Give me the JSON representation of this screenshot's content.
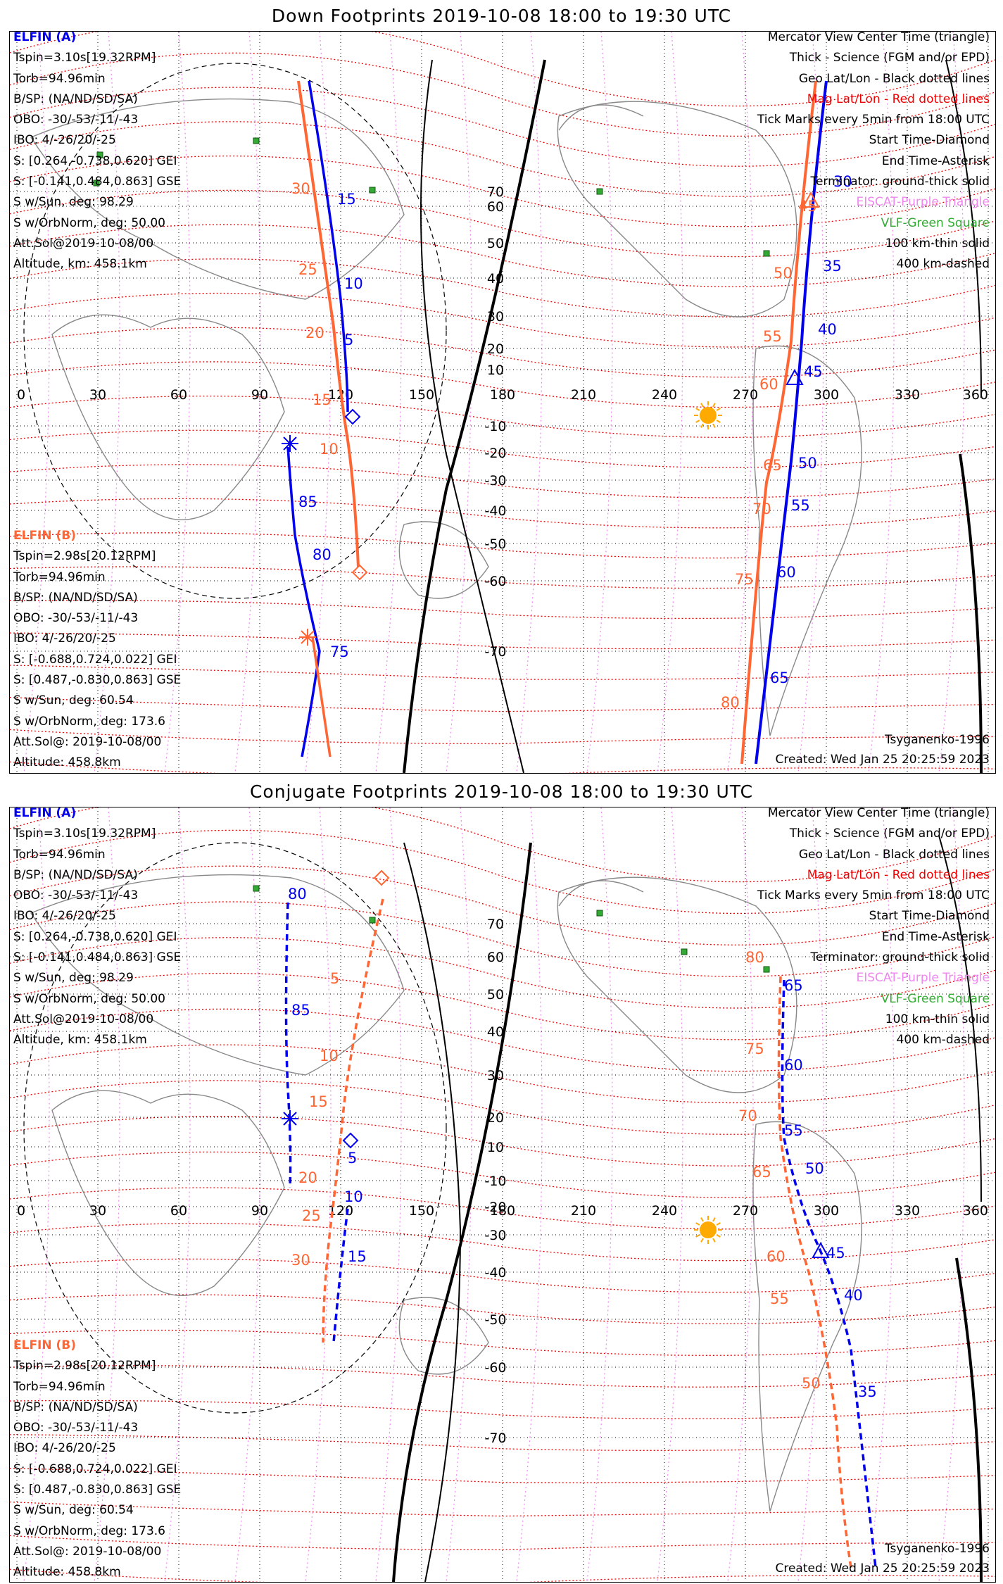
{
  "colors": {
    "elfin_a": "#0000ee",
    "elfin_b": "#ff6633",
    "mag_grid": "#ee0000",
    "eiscat": "#ee88ee",
    "vlf": "#33aa33",
    "sun": "#ffaa00",
    "coast": "#888888"
  },
  "panels": [
    {
      "title": "Down Footprints 2019-10-08 18:00 to 19:30 UTC",
      "footprint_mode": "down",
      "elfin_a": {
        "header": "ELFIN (A)",
        "lines": [
          "Tspin=3.10s[19.32RPM]",
          "Torb=94.96min",
          "B/SP: (NA/ND/SD/SA)",
          "OBO: -30/-53/-11/-43",
          "IBO: 4/-26/20/-25",
          "S: [0.264,-0.738,0.620] GEI",
          "S: [-0.141,0.484,0.863] GSE",
          "S w/Sun, deg: 98.29",
          "S w/OrbNorm, deg: 50.00",
          "Att.Sol@2019-10-08/00",
          "Altitude, km: 458.1km"
        ]
      },
      "elfin_b": {
        "header": "ELFIN (B)",
        "lines": [
          "Tspin=2.98s[20.12RPM]",
          "Torb=94.96min",
          "B/SP: (NA/ND/SD/SA)",
          "OBO: -30/-53/-11/-43",
          "IBO: 4/-26/20/-25",
          "S: [-0.688,0.724,0.022] GEI",
          "S: [0.487,-0.830,0.863] GSE",
          "S w/Sun, deg: 60.54",
          "S w/OrbNorm, deg: 173.6",
          "Att.Sol@: 2019-10-08/00",
          "Altitude: 458.8km"
        ]
      },
      "legend": [
        "Mercator View Center Time (triangle)",
        "Thick - Science (FGM and/or EPD)",
        "Geo Lat/Lon - Black dotted lines",
        "Mag Lat/Lon - Red dotted lines",
        "Tick Marks every 5min from 18:00 UTC",
        "Start Time-Diamond",
        "End Time-Asterisk",
        "Terminator: ground-thick solid",
        "EISCAT-Purple Triangle",
        "VLF-Green Square",
        "100 km-thin solid",
        "400 km-dashed"
      ],
      "model": "Tsyganenko-1996",
      "created": "Created: Wed Jan 25 20:25:59 2023",
      "lon_labels": [
        "0",
        "30",
        "60",
        "90",
        "120",
        "150",
        "180",
        "210",
        "240",
        "270",
        "300",
        "330",
        "360"
      ],
      "lat_labels": [
        "70",
        "60",
        "50",
        "40",
        "30",
        "20",
        "10",
        "-10",
        "-20",
        "-30",
        "-40",
        "-50",
        "-60",
        "-70"
      ],
      "tick_labels": [
        {
          "text": "30",
          "c": "elfin_b"
        },
        {
          "text": "25",
          "c": "elfin_b"
        },
        {
          "text": "20",
          "c": "elfin_b"
        },
        {
          "text": "15",
          "c": "elfin_b"
        },
        {
          "text": "10",
          "c": "elfin_b"
        },
        {
          "text": "15",
          "c": "elfin_a"
        },
        {
          "text": "10",
          "c": "elfin_a"
        },
        {
          "text": "5",
          "c": "elfin_a"
        },
        {
          "text": "85",
          "c": "elfin_a"
        },
        {
          "text": "80",
          "c": "elfin_a"
        },
        {
          "text": "75",
          "c": "elfin_a"
        },
        {
          "text": "30",
          "c": "elfin_a"
        },
        {
          "text": "35",
          "c": "elfin_a"
        },
        {
          "text": "40",
          "c": "elfin_a"
        },
        {
          "text": "45",
          "c": "elfin_a"
        },
        {
          "text": "50",
          "c": "elfin_a"
        },
        {
          "text": "55",
          "c": "elfin_a"
        },
        {
          "text": "60",
          "c": "elfin_a"
        },
        {
          "text": "65",
          "c": "elfin_a"
        },
        {
          "text": "45",
          "c": "elfin_b"
        },
        {
          "text": "50",
          "c": "elfin_b"
        },
        {
          "text": "55",
          "c": "elfin_b"
        },
        {
          "text": "60",
          "c": "elfin_b"
        },
        {
          "text": "65",
          "c": "elfin_b"
        },
        {
          "text": "70",
          "c": "elfin_b"
        },
        {
          "text": "75",
          "c": "elfin_b"
        },
        {
          "text": "80",
          "c": "elfin_b"
        }
      ]
    },
    {
      "title": "Conjugate Footprints 2019-10-08 18:00 to 19:30 UTC",
      "footprint_mode": "conjugate",
      "elfin_a": {
        "header": "ELFIN (A)",
        "lines": [
          "Tspin=3.10s[19.32RPM]",
          "Torb=94.96min",
          "B/SP: (NA/ND/SD/SA)",
          "OBO: -30/-53/-11/-43",
          "IBO: 4/-26/20/-25",
          "S: [0.264,-0.738,0.620] GEI",
          "S: [-0.141,0.484,0.863] GSE",
          "S w/Sun, deg: 98.29",
          "S w/OrbNorm, deg: 50.00",
          "Att.Sol@2019-10-08/00",
          "Altitude, km: 458.1km"
        ]
      },
      "elfin_b": {
        "header": "ELFIN (B)",
        "lines": [
          "Tspin=2.98s[20.12RPM]",
          "Torb=94.96min",
          "B/SP: (NA/ND/SD/SA)",
          "OBO: -30/-53/-11/-43",
          "IBO: 4/-26/20/-25",
          "S: [-0.688,0.724,0.022] GEI",
          "S: [0.487,-0.830,0.863] GSE",
          "S w/Sun, deg: 60.54",
          "S w/OrbNorm, deg: 173.6",
          "Att.Sol@: 2019-10-08/00",
          "Altitude: 458.8km"
        ]
      },
      "legend": [
        "Mercator View Center Time (triangle)",
        "Thick - Science (FGM and/or EPD)",
        "Geo Lat/Lon - Black dotted lines",
        "Mag Lat/Lon - Red dotted lines",
        "Tick Marks every 5min from 18:00 UTC",
        "Start Time-Diamond",
        "End Time-Asterisk",
        "Terminator: ground-thick solid",
        "EISCAT-Purple Triangle",
        "VLF-Green Square",
        "100 km-thin solid",
        "400 km-dashed"
      ],
      "model": "Tsyganenko-1996",
      "created": "Created: Wed Jan 25 20:25:59 2023",
      "lon_labels": [
        "0",
        "30",
        "60",
        "90",
        "120",
        "150",
        "180",
        "210",
        "240",
        "270",
        "300",
        "330",
        "360"
      ],
      "lat_labels": [
        "70",
        "60",
        "50",
        "40",
        "30",
        "20",
        "10",
        "-10",
        "-20",
        "-30",
        "-40",
        "-50",
        "-60",
        "-70"
      ],
      "tick_labels": [
        {
          "text": "80",
          "c": "elfin_a"
        },
        {
          "text": "85",
          "c": "elfin_a"
        },
        {
          "text": "5",
          "c": "elfin_b"
        },
        {
          "text": "10",
          "c": "elfin_b"
        },
        {
          "text": "15",
          "c": "elfin_b"
        },
        {
          "text": "20",
          "c": "elfin_b"
        },
        {
          "text": "25",
          "c": "elfin_b"
        },
        {
          "text": "30",
          "c": "elfin_b"
        },
        {
          "text": "5",
          "c": "elfin_a"
        },
        {
          "text": "10",
          "c": "elfin_a"
        },
        {
          "text": "15",
          "c": "elfin_a"
        },
        {
          "text": "65",
          "c": "elfin_a"
        },
        {
          "text": "60",
          "c": "elfin_a"
        },
        {
          "text": "55",
          "c": "elfin_a"
        },
        {
          "text": "50",
          "c": "elfin_a"
        },
        {
          "text": "45",
          "c": "elfin_a"
        },
        {
          "text": "40",
          "c": "elfin_a"
        },
        {
          "text": "35",
          "c": "elfin_a"
        },
        {
          "text": "80",
          "c": "elfin_b"
        },
        {
          "text": "75",
          "c": "elfin_b"
        },
        {
          "text": "70",
          "c": "elfin_b"
        },
        {
          "text": "65",
          "c": "elfin_b"
        },
        {
          "text": "60",
          "c": "elfin_b"
        },
        {
          "text": "55",
          "c": "elfin_b"
        },
        {
          "text": "50",
          "c": "elfin_b"
        }
      ]
    }
  ]
}
